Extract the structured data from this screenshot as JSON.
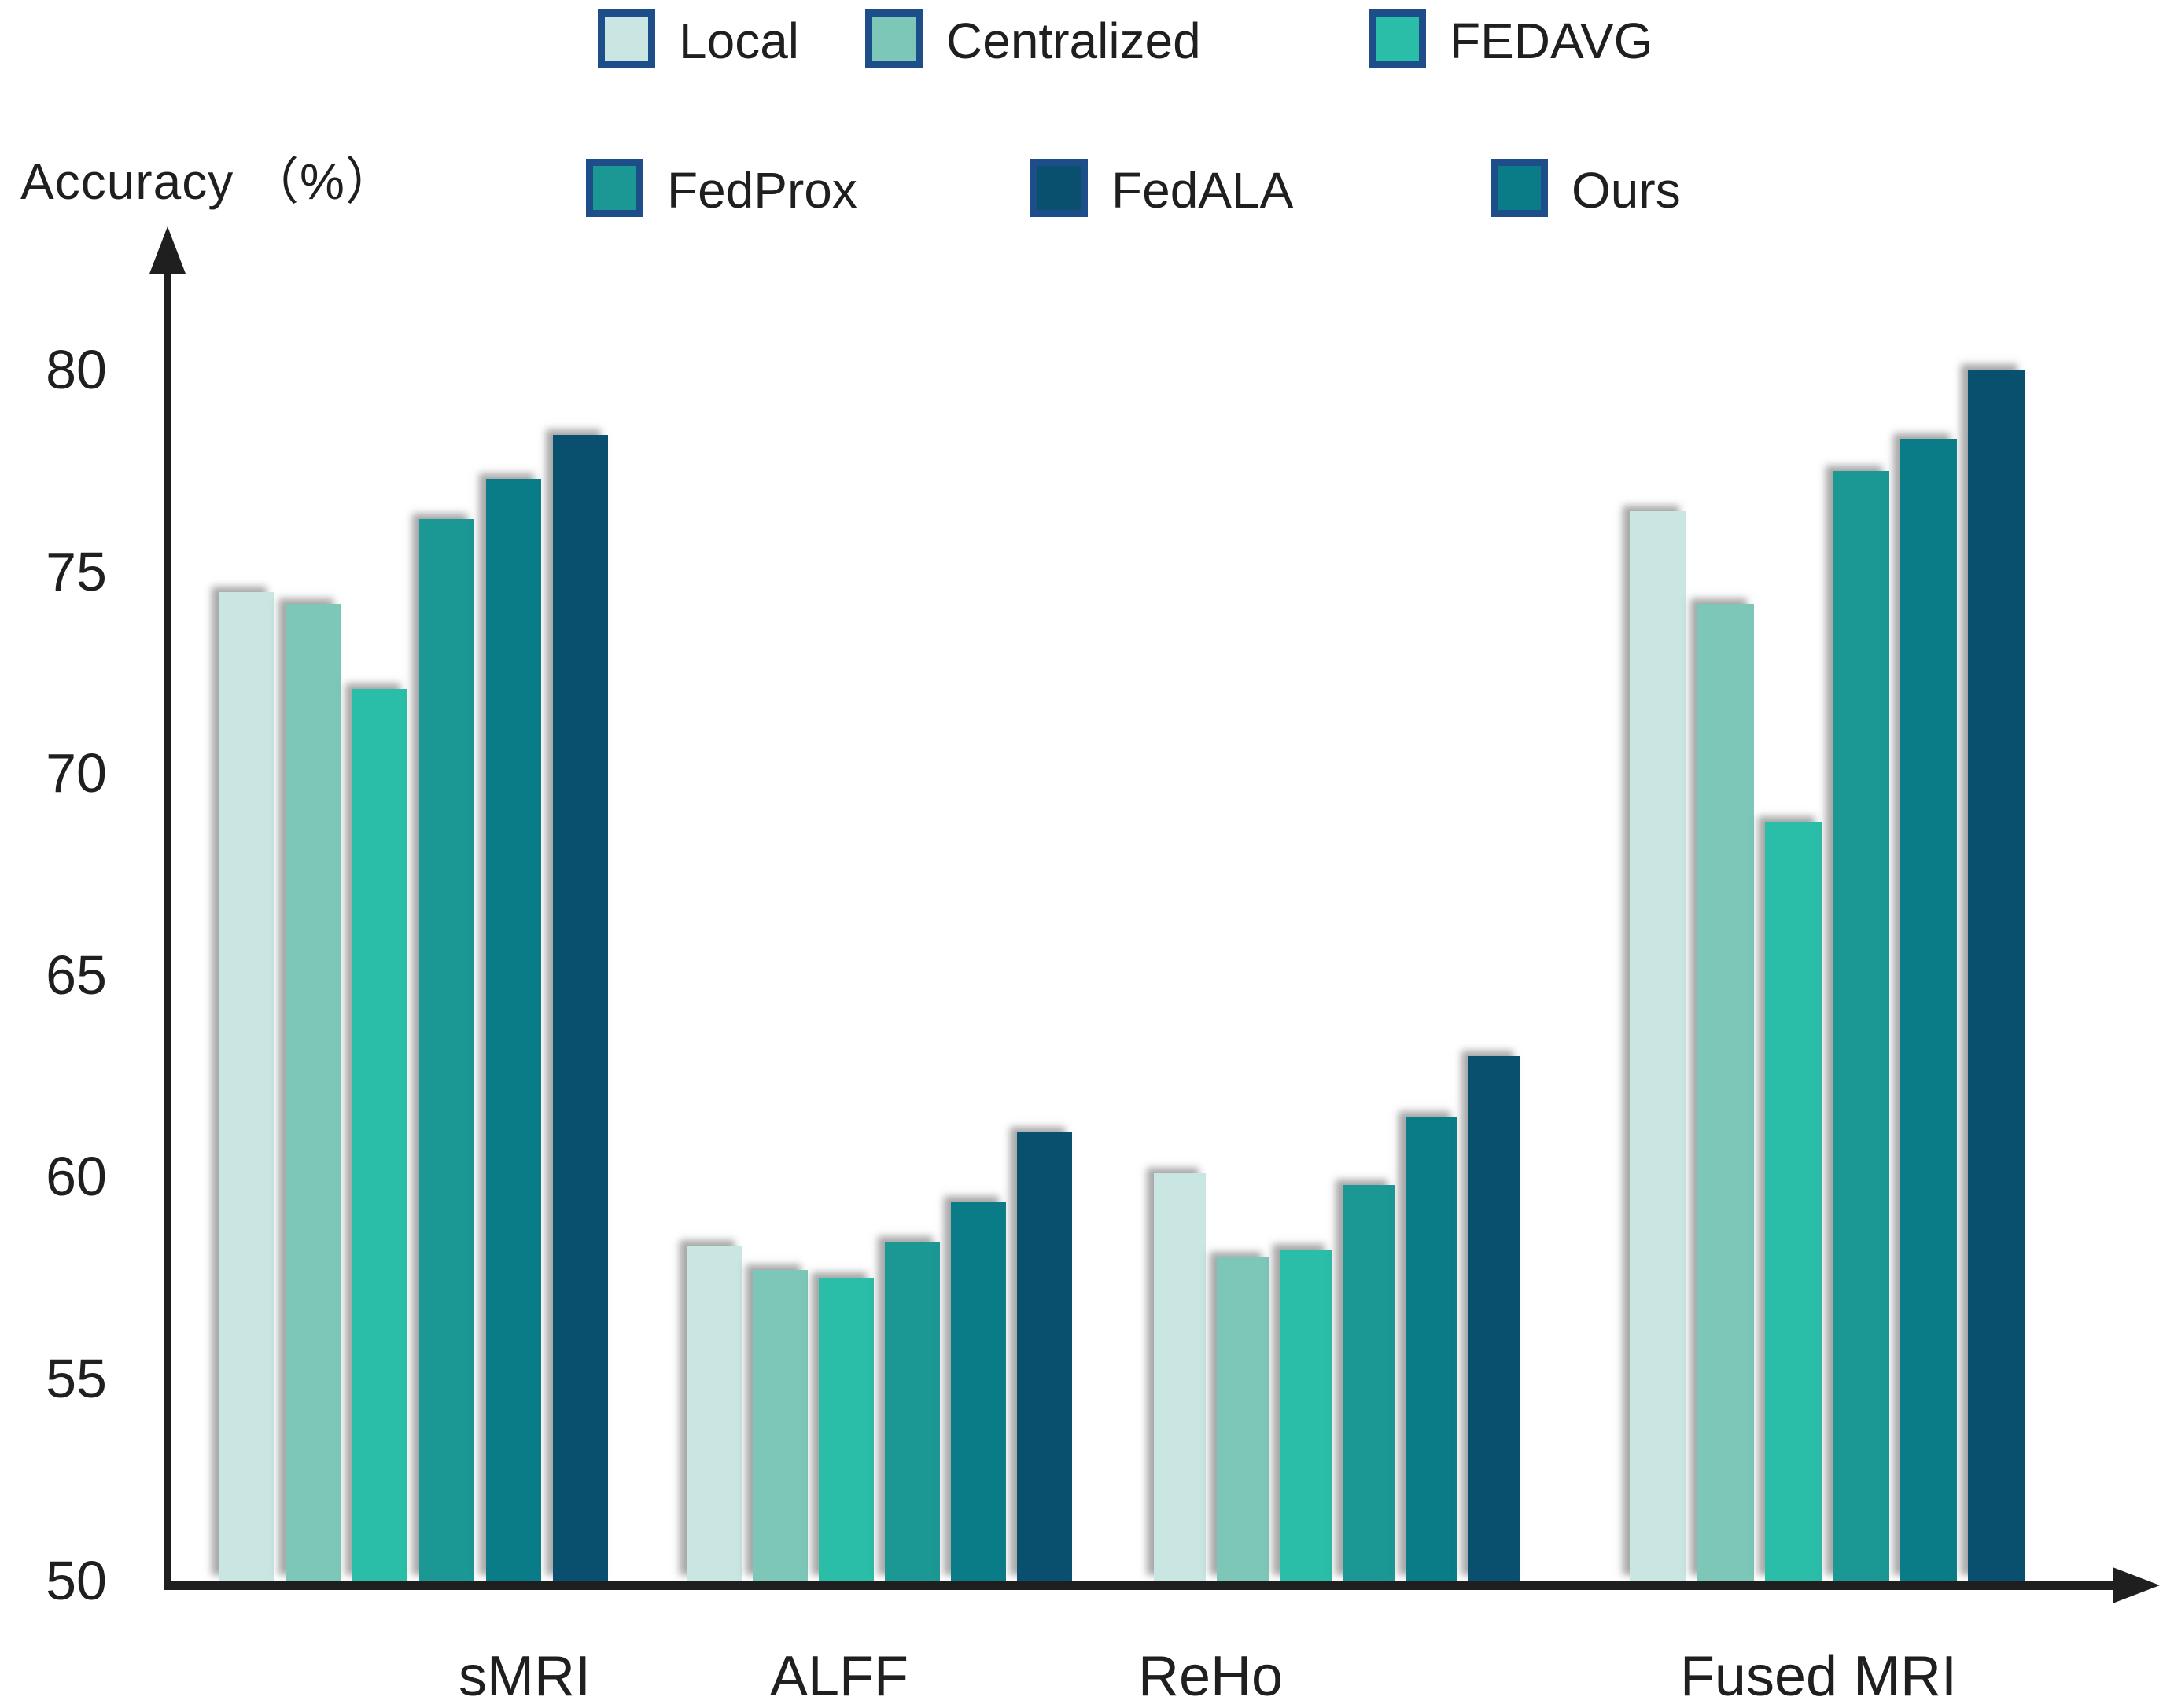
{
  "figure": {
    "ylabel": "Accuracy （%）",
    "axis_color": "#1f1f1f",
    "legend_swatch_border": "#1d4e89",
    "shadow_color": "#9a9a9a"
  },
  "chart_data": {
    "type": "bar",
    "title": "",
    "xlabel": "",
    "ylabel": "Accuracy (%)",
    "ylim": [
      50,
      82
    ],
    "yticks": [
      50,
      55,
      60,
      65,
      70,
      75,
      80
    ],
    "grid": false,
    "legend_position": "top",
    "categories": [
      "sMRI",
      "ALFF",
      "ReHo",
      "Fused MRI"
    ],
    "series": [
      {
        "name": "Local",
        "color": "#c9e6e2",
        "values": [
          74.5,
          58.3,
          60.1,
          76.5
        ]
      },
      {
        "name": "Centralized",
        "color": "#7dc7b9",
        "values": [
          74.2,
          57.7,
          58.0,
          74.2
        ]
      },
      {
        "name": "FEDAVG",
        "color": "#2abda7",
        "values": [
          72.1,
          57.5,
          58.2,
          68.8
        ]
      },
      {
        "name": "FedProx",
        "color": "#1b9794",
        "values": [
          76.3,
          58.4,
          59.8,
          77.5
        ]
      },
      {
        "name": "Ours",
        "color": "#0a7c87",
        "values": [
          77.3,
          59.4,
          61.5,
          78.3
        ]
      },
      {
        "name": "FedALA",
        "color": "#094f6e",
        "values": [
          78.4,
          61.1,
          63.0,
          80.0
        ]
      }
    ],
    "bar_order": [
      "Local",
      "Centralized",
      "FEDAVG",
      "FedProx",
      "Ours",
      "FedALA"
    ],
    "legend_rows": [
      [
        "Local",
        "Centralized",
        "FEDAVG"
      ],
      [
        "FedProx",
        "FedALA",
        "Ours"
      ]
    ]
  }
}
